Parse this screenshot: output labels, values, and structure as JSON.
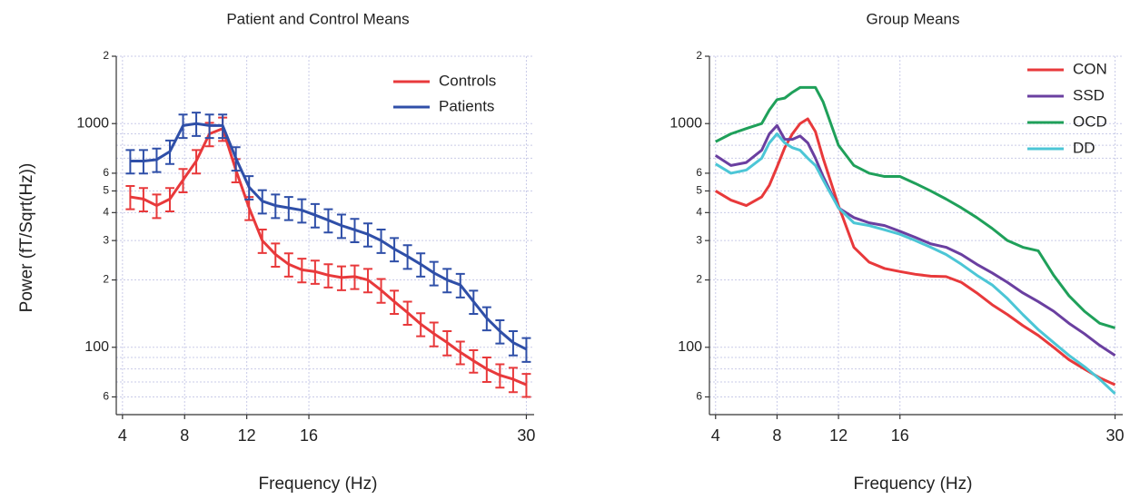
{
  "chart_data": [
    {
      "type": "line",
      "title": "Patient and Control Means",
      "x_label": "Frequency (Hz)",
      "y_label": "Power (fT/Sqrt(Hz))",
      "log_y": true,
      "grid": true,
      "legend": "upper right",
      "xlim": [
        3.6,
        30.5
      ],
      "xticks": [
        4,
        8,
        12,
        16,
        30
      ],
      "ylim": [
        50,
        2000
      ],
      "yticks": [
        {
          "value": 2000,
          "label": "2"
        },
        1000,
        {
          "value": 600,
          "label": "6"
        },
        {
          "value": 500,
          "label": "5"
        },
        {
          "value": 400,
          "label": "4"
        },
        {
          "value": 300,
          "label": "3"
        },
        {
          "value": 200,
          "label": "2"
        },
        100,
        {
          "value": 60,
          "label": "6"
        }
      ],
      "y_minor_grid": [
        900,
        800,
        700,
        90,
        80,
        70
      ],
      "x": [
        4.5,
        5.35,
        6.2,
        7.05,
        7.9,
        8.75,
        9.6,
        10.45,
        11.3,
        12.15,
        13,
        13.85,
        14.7,
        15.55,
        16.4,
        17.25,
        18.1,
        18.95,
        19.8,
        20.65,
        21.5,
        22.35,
        23.2,
        24.05,
        24.9,
        25.75,
        26.6,
        27.45,
        28.3,
        29.15,
        30
      ],
      "series": [
        {
          "name": "Controls",
          "color": "#e8393b",
          "values": [
            470,
            460,
            430,
            460,
            560,
            680,
            900,
            950,
            620,
            420,
            300,
            260,
            235,
            222,
            218,
            210,
            205,
            207,
            200,
            180,
            160,
            143,
            127,
            115,
            105,
            95,
            87,
            80,
            75,
            72,
            68
          ],
          "errors": [
            56,
            55,
            52,
            55,
            67,
            82,
            108,
            114,
            74,
            50,
            36,
            31,
            28,
            27,
            26,
            25,
            25,
            25,
            24,
            22,
            19,
            17,
            15,
            14,
            13,
            11,
            10,
            10,
            9,
            9,
            8
          ]
        },
        {
          "name": "Patients",
          "color": "#2f4fa8",
          "values": [
            680,
            680,
            690,
            750,
            980,
            1000,
            980,
            980,
            700,
            520,
            450,
            430,
            420,
            410,
            390,
            370,
            350,
            335,
            320,
            300,
            275,
            255,
            235,
            215,
            200,
            190,
            160,
            135,
            118,
            105,
            98
          ],
          "errors": [
            82,
            82,
            83,
            90,
            118,
            120,
            118,
            118,
            84,
            62,
            54,
            52,
            50,
            49,
            47,
            44,
            42,
            40,
            38,
            36,
            33,
            31,
            28,
            26,
            24,
            23,
            19,
            16,
            14,
            13,
            12
          ]
        }
      ]
    },
    {
      "type": "line",
      "title": "Group Means",
      "x_label": "Frequency (Hz)",
      "log_y": true,
      "grid": true,
      "legend": "upper right",
      "xlim": [
        3.6,
        30.5
      ],
      "xticks": [
        4,
        8,
        12,
        16,
        30
      ],
      "ylim": [
        50,
        2000
      ],
      "yticks": [
        {
          "value": 2000,
          "label": "2"
        },
        1000,
        {
          "value": 600,
          "label": "6"
        },
        {
          "value": 500,
          "label": "5"
        },
        {
          "value": 400,
          "label": "4"
        },
        {
          "value": 300,
          "label": "3"
        },
        {
          "value": 200,
          "label": "2"
        },
        100,
        {
          "value": 60,
          "label": "6"
        }
      ],
      "y_minor_grid": [
        900,
        800,
        700,
        90,
        80,
        70
      ],
      "x": [
        4,
        5,
        6,
        7,
        7.5,
        8,
        8.5,
        9,
        9.5,
        10,
        10.5,
        11,
        12,
        13,
        14,
        15,
        16,
        17,
        18,
        19,
        20,
        21,
        22,
        23,
        24,
        25,
        26,
        27,
        28,
        29,
        30
      ],
      "series": [
        {
          "name": "CON",
          "color": "#e8393b",
          "values": [
            500,
            455,
            430,
            470,
            530,
            640,
            780,
            900,
            1000,
            1050,
            920,
            700,
            430,
            280,
            240,
            225,
            218,
            212,
            208,
            207,
            195,
            175,
            155,
            140,
            125,
            113,
            100,
            88,
            80,
            73,
            68
          ]
        },
        {
          "name": "SSD",
          "color": "#6a3fa0",
          "values": [
            720,
            650,
            670,
            760,
            900,
            980,
            850,
            850,
            880,
            820,
            700,
            580,
            420,
            380,
            360,
            350,
            330,
            310,
            290,
            280,
            260,
            235,
            215,
            195,
            175,
            160,
            145,
            128,
            115,
            102,
            92
          ]
        },
        {
          "name": "OCD",
          "color": "#1fa05a",
          "values": [
            830,
            900,
            950,
            1000,
            1150,
            1280,
            1300,
            1380,
            1450,
            1450,
            1450,
            1250,
            800,
            650,
            600,
            580,
            580,
            540,
            500,
            460,
            420,
            380,
            340,
            300,
            280,
            270,
            210,
            170,
            145,
            128,
            122
          ]
        },
        {
          "name": "DD",
          "color": "#4cc6d6",
          "values": [
            660,
            600,
            620,
            700,
            820,
            900,
            820,
            780,
            760,
            700,
            650,
            560,
            420,
            360,
            350,
            335,
            320,
            300,
            280,
            260,
            235,
            210,
            190,
            165,
            140,
            120,
            105,
            92,
            82,
            72,
            62
          ]
        }
      ]
    }
  ]
}
